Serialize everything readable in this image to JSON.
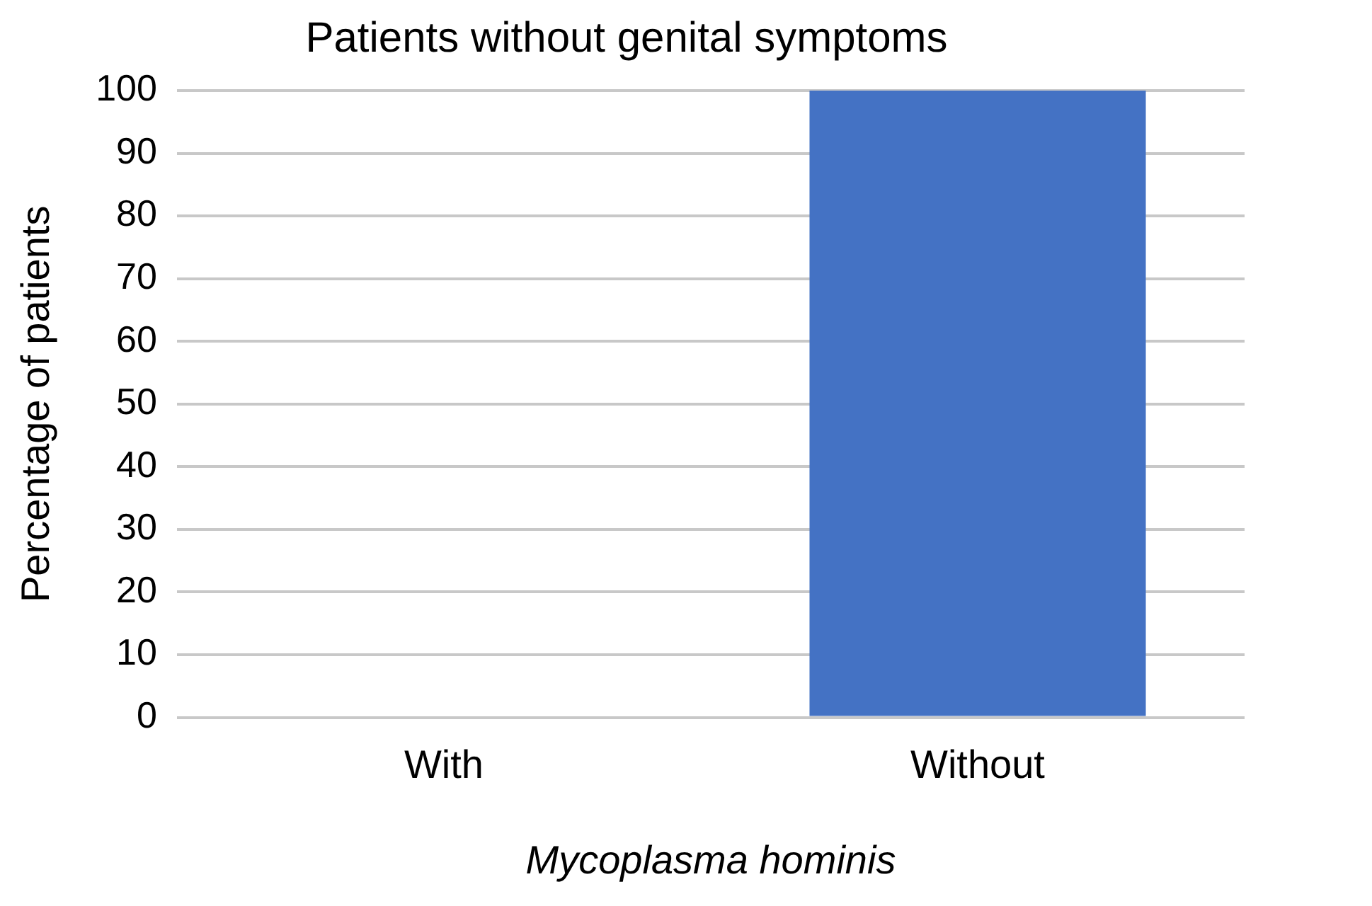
{
  "chart_data": {
    "type": "bar",
    "title": "Patients without genital symptoms",
    "xlabel": "Mycoplasma hominis",
    "ylabel": "Percentage of patients",
    "categories": [
      "With",
      "Without"
    ],
    "values": [
      0,
      100
    ],
    "color": "#4472c4",
    "ylim": [
      0,
      100
    ],
    "yticks": [
      0,
      10,
      20,
      30,
      40,
      50,
      60,
      70,
      80,
      90,
      100
    ],
    "grid": "y",
    "legend": false
  }
}
